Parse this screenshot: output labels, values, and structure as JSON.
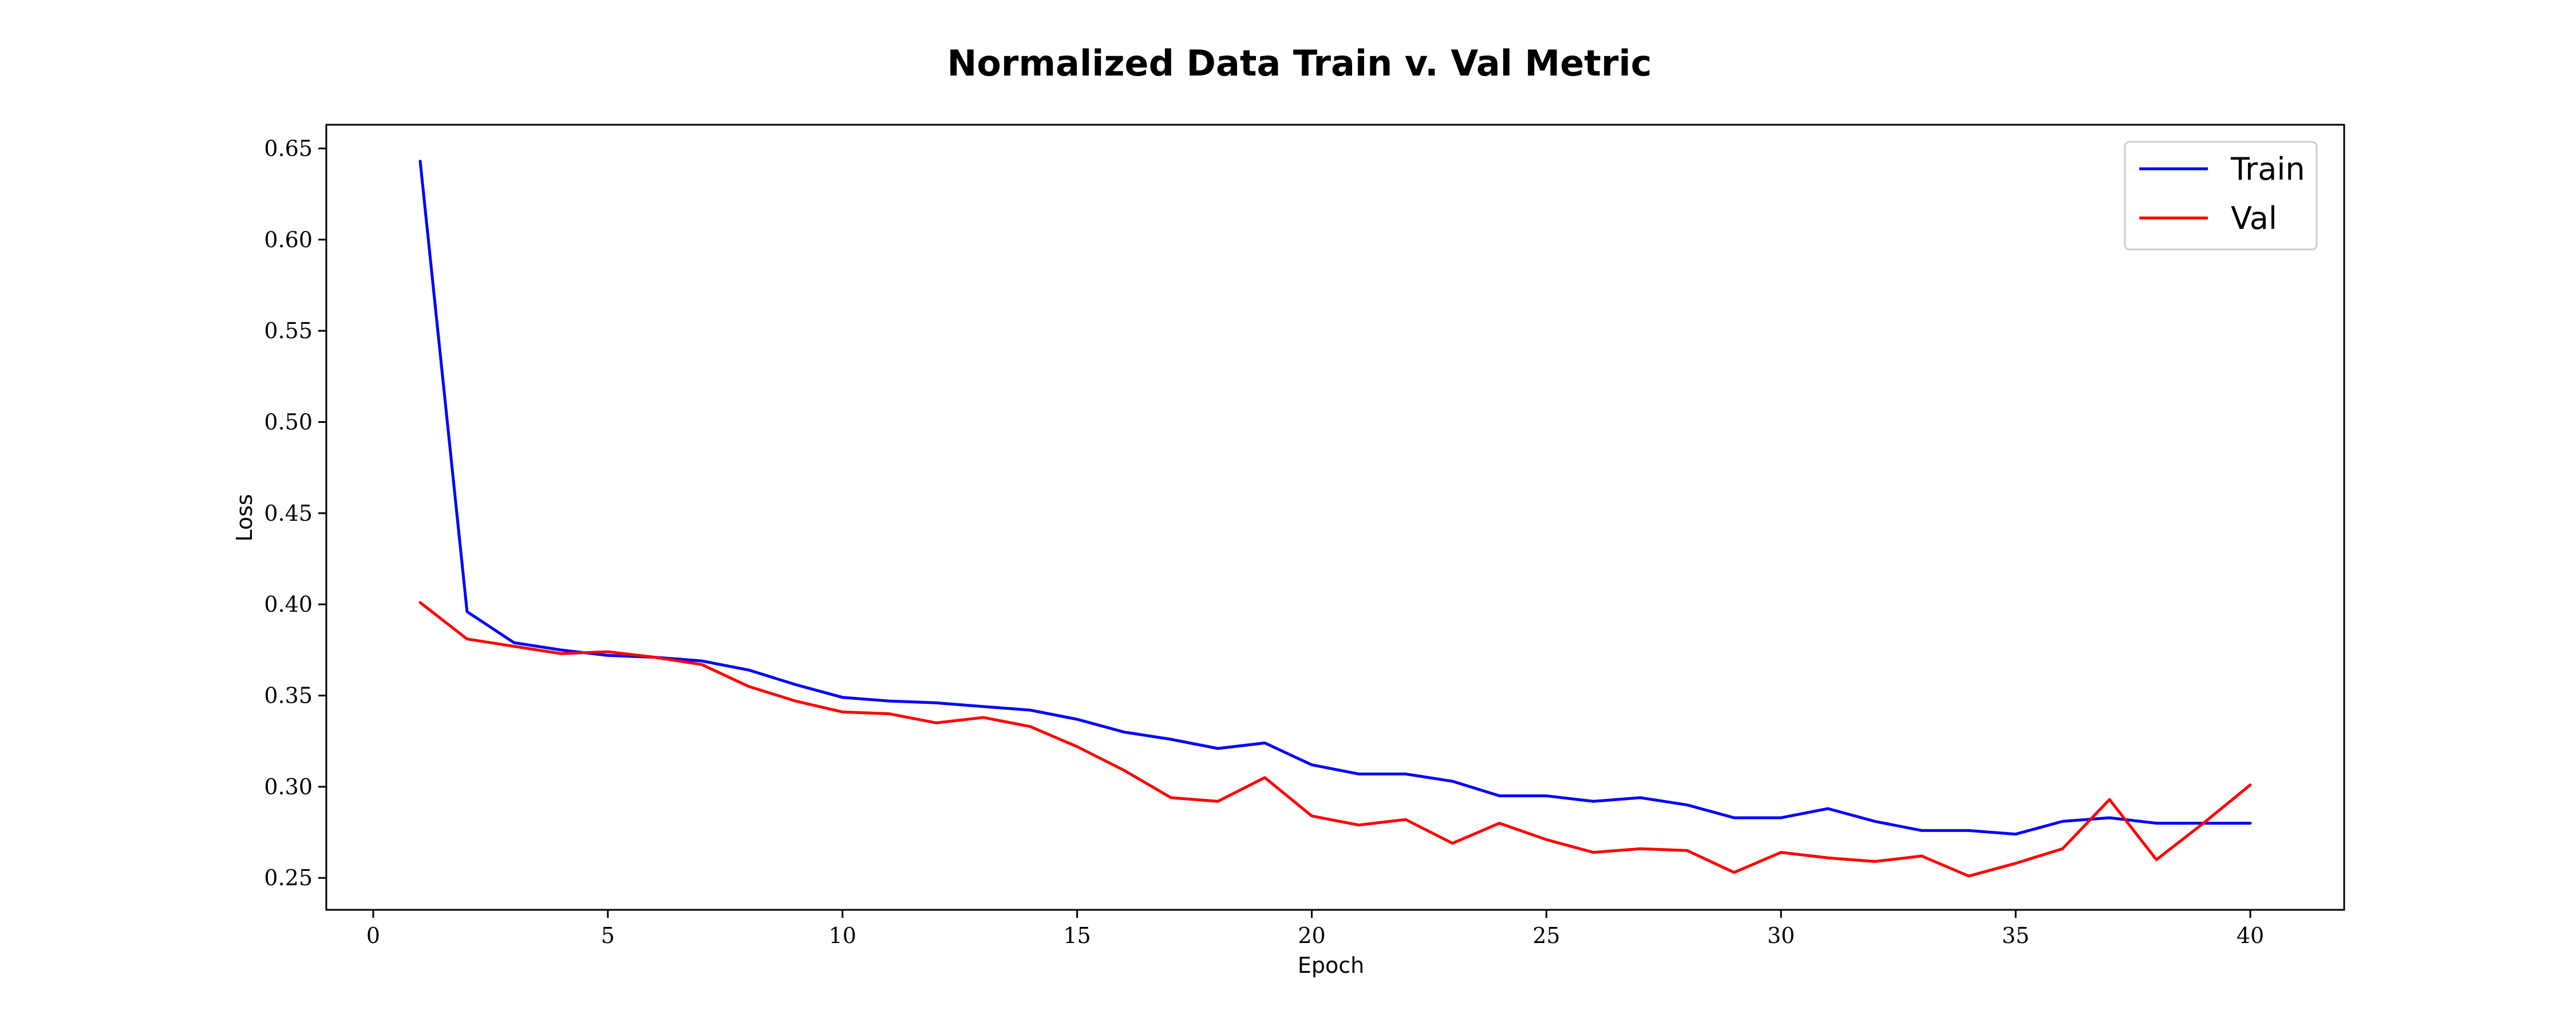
{
  "chart_data": {
    "type": "line",
    "title": "Normalized Data Train v. Val Metric",
    "xlabel": "Epoch",
    "ylabel": "Loss",
    "xlim": [
      -1,
      42
    ],
    "ylim": [
      0.2325,
      0.663
    ],
    "xticks": [
      0,
      5,
      10,
      15,
      20,
      25,
      30,
      35,
      40
    ],
    "yticks": [
      0.25,
      0.3,
      0.35,
      0.4,
      0.45,
      0.5,
      0.55,
      0.6,
      0.65
    ],
    "ytick_labels": [
      "0.25",
      "0.30",
      "0.35",
      "0.40",
      "0.45",
      "0.50",
      "0.55",
      "0.60",
      "0.65"
    ],
    "grid": false,
    "legend_position": "top-right",
    "x": [
      1,
      2,
      3,
      4,
      5,
      6,
      7,
      8,
      9,
      10,
      11,
      12,
      13,
      14,
      15,
      16,
      17,
      18,
      19,
      20,
      21,
      22,
      23,
      24,
      25,
      26,
      27,
      28,
      29,
      30,
      31,
      32,
      33,
      34,
      35,
      36,
      37,
      38,
      39,
      40
    ],
    "series": [
      {
        "name": "Train",
        "color": "#0000ff",
        "values": [
          0.643,
          0.396,
          0.379,
          0.375,
          0.372,
          0.371,
          0.369,
          0.364,
          0.356,
          0.349,
          0.347,
          0.346,
          0.344,
          0.342,
          0.337,
          0.33,
          0.326,
          0.321,
          0.324,
          0.312,
          0.307,
          0.307,
          0.303,
          0.295,
          0.295,
          0.292,
          0.294,
          0.29,
          0.283,
          0.283,
          0.288,
          0.281,
          0.276,
          0.276,
          0.274,
          0.281,
          0.283,
          0.28,
          0.28,
          0.28
        ]
      },
      {
        "name": "Val",
        "color": "#ff0000",
        "values": [
          0.401,
          0.381,
          0.377,
          0.373,
          0.374,
          0.371,
          0.367,
          0.355,
          0.347,
          0.341,
          0.34,
          0.335,
          0.338,
          0.333,
          0.322,
          0.309,
          0.294,
          0.292,
          0.305,
          0.284,
          0.279,
          0.282,
          0.269,
          0.28,
          0.271,
          0.264,
          0.266,
          0.265,
          0.253,
          0.264,
          0.261,
          0.259,
          0.262,
          0.251,
          0.258,
          0.266,
          0.293,
          0.26,
          0.28,
          0.301
        ]
      }
    ]
  }
}
